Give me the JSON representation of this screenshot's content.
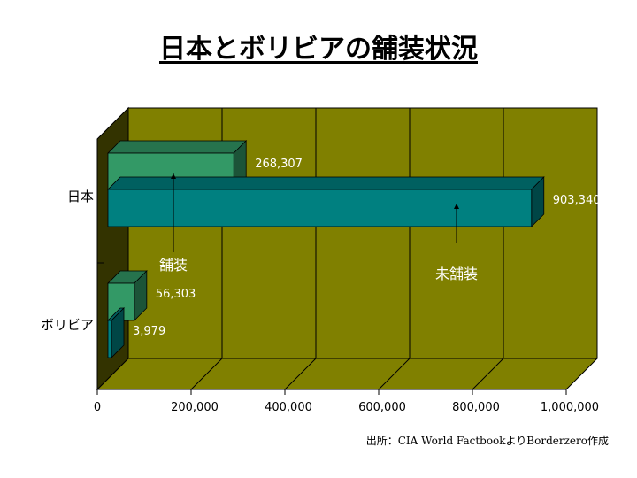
{
  "chart_data": {
    "type": "bar",
    "orientation": "horizontal",
    "title": "日本とボリビアの舗装状況",
    "categories": [
      "日本",
      "ボリビア"
    ],
    "series": [
      {
        "name": "舗装",
        "values": [
          268307,
          56303
        ],
        "color": "#339966"
      },
      {
        "name": "未舗装",
        "values": [
          903340,
          3979
        ],
        "color": "#008080"
      }
    ],
    "xlim": [
      0,
      1000000
    ],
    "xticks": [
      "0",
      "200,000",
      "400,000",
      "600,000",
      "800,000",
      "1,000,000"
    ],
    "data_labels": [
      [
        "268,307",
        "56,303"
      ],
      [
        "903,340",
        "3,979"
      ]
    ],
    "grid": true,
    "wall_color": "#808000",
    "floor_color": "#808000",
    "side_wall_color": "#333300",
    "source": "出所：CIA World FactbookよりBorderzero作成"
  }
}
